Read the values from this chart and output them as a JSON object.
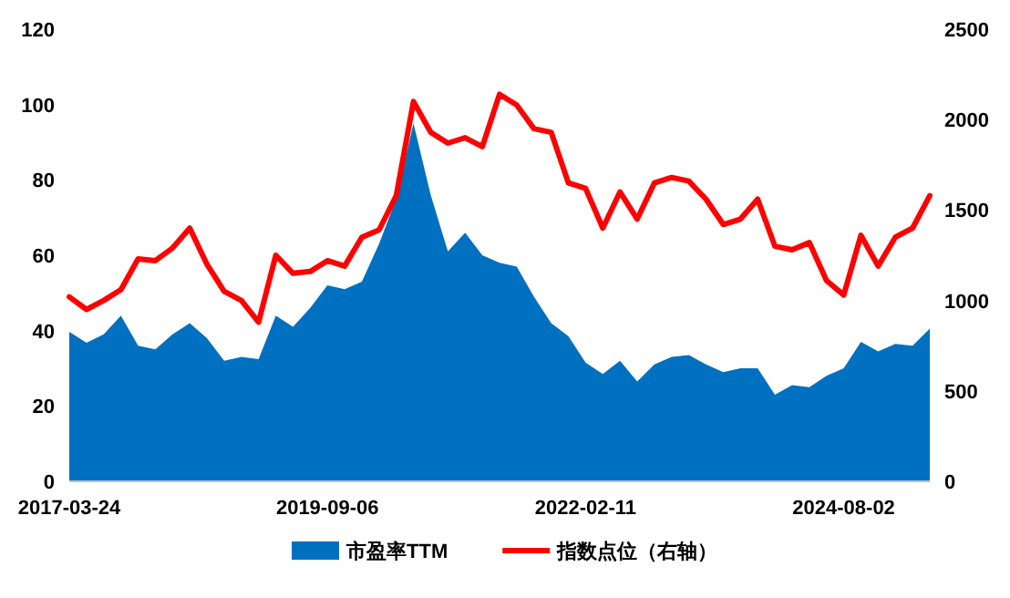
{
  "chart_data": {
    "type": "area",
    "categories": [
      "2017-03-24",
      null,
      null,
      null,
      null,
      null,
      null,
      null,
      null,
      null,
      null,
      null,
      null,
      null,
      null,
      "2019-09-06",
      null,
      null,
      null,
      null,
      null,
      null,
      null,
      null,
      null,
      null,
      null,
      null,
      null,
      null,
      "2022-02-11",
      null,
      null,
      null,
      null,
      null,
      null,
      null,
      null,
      null,
      null,
      null,
      null,
      null,
      null,
      "2024-08-02",
      null,
      null,
      null,
      null,
      null
    ],
    "series": [
      {
        "name": "市盈率TTM",
        "color": "#0070c0",
        "values": [
          39.7,
          36.8,
          39,
          44,
          36,
          35,
          39,
          42,
          38,
          32,
          33,
          32.4,
          44,
          41,
          46,
          52,
          51,
          53,
          63,
          75,
          95,
          76,
          61,
          66,
          60,
          58,
          57,
          49,
          42,
          38.5,
          31.5,
          28.5,
          32,
          26.5,
          31,
          33,
          33.5,
          31,
          29,
          30,
          30,
          23,
          25.5,
          25,
          28,
          30,
          37,
          34.5,
          36.5,
          36,
          40.5
        ]
      },
      {
        "name": "指数点位（右轴）",
        "type": "line",
        "axis": "y2",
        "color": "#ff0000",
        "values": [
          1020,
          950,
          1000,
          1060,
          1230,
          1220,
          1290,
          1400,
          1200,
          1050,
          1000,
          880,
          1250,
          1150,
          1160,
          1220,
          1190,
          1350,
          1390,
          1580,
          2100,
          1930,
          1870,
          1900,
          1850,
          2140,
          2080,
          1950,
          1930,
          1650,
          1620,
          1400,
          1600,
          1450,
          1650,
          1680,
          1660,
          1560,
          1420,
          1450,
          1560,
          1300,
          1280,
          1320,
          1110,
          1030,
          1360,
          1190,
          1350,
          1400,
          1580
        ]
      }
    ],
    "ylim": [
      0,
      120
    ],
    "yticks": [
      0,
      20,
      40,
      60,
      80,
      100,
      120
    ],
    "y2lim": [
      0,
      2500
    ],
    "y2ticks": [
      0,
      500,
      1000,
      1500,
      2000,
      2500
    ],
    "legend": "bottom"
  }
}
